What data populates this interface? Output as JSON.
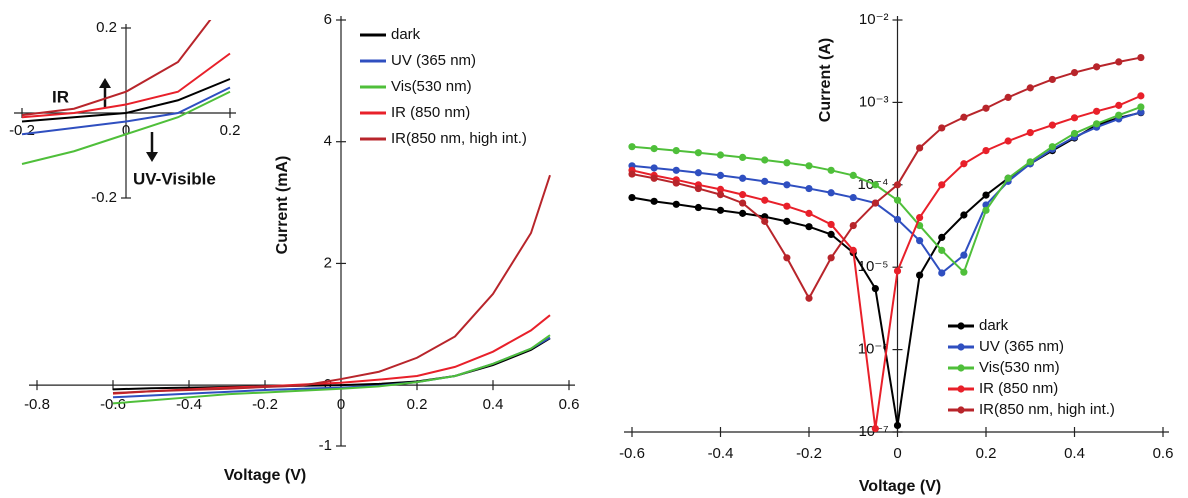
{
  "chart_data": [
    {
      "type": "line",
      "x_label": "Voltage (V)",
      "y_label": "Current (mA)",
      "x": [
        -0.6,
        -0.5,
        -0.4,
        -0.3,
        -0.2,
        -0.1,
        0,
        0.1,
        0.2,
        0.3,
        0.4,
        0.5,
        0.55
      ],
      "xlim": [
        -0.8,
        0.6
      ],
      "xticks": [
        -0.8,
        -0.6,
        -0.4,
        -0.2,
        0,
        0.2,
        0.4,
        0.6
      ],
      "ylim": [
        -1,
        6
      ],
      "yticks": [
        -1,
        0,
        2,
        4,
        6
      ],
      "grid": false,
      "legend": "upper right",
      "series": [
        {
          "name": "dark",
          "color": "#000000",
          "values": [
            -0.07,
            -0.05,
            -0.04,
            -0.03,
            -0.02,
            -0.01,
            0,
            0.02,
            0.06,
            0.15,
            0.33,
            0.58,
            0.77
          ]
        },
        {
          "name": "UV (365 nm)",
          "color": "#2f4fc0",
          "values": [
            -0.2,
            -0.17,
            -0.14,
            -0.11,
            -0.08,
            -0.06,
            -0.04,
            -0.01,
            0.05,
            0.15,
            0.35,
            0.6,
            0.78
          ]
        },
        {
          "name": "Vis(530 nm)",
          "color": "#4fbf3a",
          "values": [
            -0.3,
            -0.25,
            -0.2,
            -0.15,
            -0.12,
            -0.09,
            -0.06,
            -0.02,
            0.05,
            0.15,
            0.35,
            0.6,
            0.82
          ]
        },
        {
          "name": "IR (850 nm)",
          "color": "#e8202a",
          "values": [
            -0.14,
            -0.1,
            -0.07,
            -0.04,
            -0.02,
            0.01,
            0.04,
            0.09,
            0.15,
            0.3,
            0.55,
            0.9,
            1.15
          ]
        },
        {
          "name": "IR(850 nm, high int.)",
          "color": "#b8252b",
          "values": [
            -0.13,
            -0.1,
            -0.08,
            -0.06,
            -0.03,
            -0.005,
            0.1,
            0.22,
            0.45,
            0.8,
            1.5,
            2.5,
            3.45
          ]
        }
      ]
    },
    {
      "type": "line",
      "x": [
        -0.2,
        -0.1,
        0,
        0.1,
        0.2
      ],
      "xlim": [
        -0.2,
        0.2
      ],
      "xticks": [
        -0.2,
        0,
        0.2
      ],
      "ylim": [
        -0.2,
        0.2
      ],
      "yticks": [
        -0.2,
        0.2
      ],
      "grid": false,
      "annotations": [
        "IR",
        "UV-Visible"
      ],
      "series": [
        {
          "color": "#000000",
          "values": [
            -0.02,
            -0.01,
            0,
            0.03,
            0.08
          ]
        },
        {
          "color": "#2f4fc0",
          "values": [
            -0.05,
            -0.035,
            -0.02,
            0,
            0.06
          ]
        },
        {
          "color": "#4fbf3a",
          "values": [
            -0.12,
            -0.09,
            -0.05,
            -0.01,
            0.05
          ]
        },
        {
          "color": "#e8202a",
          "values": [
            -0.01,
            0,
            0.02,
            0.05,
            0.14
          ]
        },
        {
          "color": "#b8252b",
          "values": [
            -0.005,
            0.01,
            0.05,
            0.12,
            0.28
          ]
        }
      ]
    },
    {
      "type": "line",
      "x_label": "Voltage (V)",
      "y_label": "Current (A)",
      "yscale": "log",
      "markers": true,
      "x": [
        -0.6,
        -0.55,
        -0.5,
        -0.45,
        -0.4,
        -0.35,
        -0.3,
        -0.25,
        -0.2,
        -0.15,
        -0.1,
        -0.05,
        0,
        0.05,
        0.1,
        0.15,
        0.2,
        0.25,
        0.3,
        0.35,
        0.4,
        0.45,
        0.5,
        0.55
      ],
      "xlim": [
        -0.6,
        0.6
      ],
      "xticks": [
        -0.6,
        -0.4,
        -0.2,
        0,
        0.2,
        0.4,
        0.6
      ],
      "ylim": [
        1e-07,
        0.01
      ],
      "yticks": [
        {
          "value": 1e-07,
          "label": "10⁻⁷"
        },
        {
          "value": 1e-06,
          "label": "10⁻⁶"
        },
        {
          "value": 1e-05,
          "label": "10⁻⁵"
        },
        {
          "value": 0.0001,
          "label": "10⁻⁴"
        },
        {
          "value": 0.001,
          "label": "10⁻³"
        },
        {
          "value": 0.01,
          "label": "10⁻²"
        }
      ],
      "grid": false,
      "legend": "lower right",
      "series": [
        {
          "name": "dark",
          "color": "#000000",
          "values": [
            7e-05,
            6.3e-05,
            5.8e-05,
            5.3e-05,
            4.9e-05,
            4.5e-05,
            4.1e-05,
            3.6e-05,
            3.1e-05,
            2.5e-05,
            1.5e-05,
            5.5e-06,
            1.2e-07,
            8e-06,
            2.3e-05,
            4.3e-05,
            7.5e-05,
            0.00012,
            0.00018,
            0.00026,
            0.00037,
            0.00053,
            0.00065,
            0.00075
          ]
        },
        {
          "name": "UV (365 nm)",
          "color": "#2f4fc0",
          "values": [
            0.00017,
            0.00016,
            0.00015,
            0.00014,
            0.00013,
            0.00012,
            0.00011,
            0.0001,
            9e-05,
            8e-05,
            7e-05,
            6e-05,
            3.8e-05,
            2.1e-05,
            8.5e-06,
            1.4e-05,
            5.7e-05,
            0.00011,
            0.00018,
            0.00027,
            0.00038,
            0.0005,
            0.00063,
            0.00076
          ]
        },
        {
          "name": "Vis(530 nm)",
          "color": "#4fbf3a",
          "values": [
            0.00029,
            0.000275,
            0.00026,
            0.000245,
            0.00023,
            0.000215,
            0.0002,
            0.000185,
            0.00017,
            0.00015,
            0.00013,
            0.0001,
            6.5e-05,
            3.2e-05,
            1.6e-05,
            8.7e-06,
            4.9e-05,
            0.00012,
            0.00019,
            0.00029,
            0.00042,
            0.00055,
            0.0007,
            0.00088
          ]
        },
        {
          "name": "IR (850 nm)",
          "color": "#e8202a",
          "values": [
            0.00015,
            0.00013,
            0.000115,
            0.0001,
            8.8e-05,
            7.6e-05,
            6.5e-05,
            5.5e-05,
            4.5e-05,
            3.3e-05,
            1.6e-05,
            1.1e-07,
            9e-06,
            4e-05,
            0.0001,
            0.00018,
            0.00026,
            0.00034,
            0.00043,
            0.00053,
            0.00065,
            0.00078,
            0.00092,
            0.0012
          ]
        },
        {
          "name": "IR(850 nm, high int.)",
          "color": "#b8252b",
          "values": [
            0.000135,
            0.00012,
            0.000105,
            9e-05,
            7.6e-05,
            6e-05,
            3.6e-05,
            1.3e-05,
            4.2e-06,
            1.3e-05,
            3.2e-05,
            6e-05,
            0.0001,
            0.00028,
            0.00049,
            0.00066,
            0.00085,
            0.00115,
            0.0015,
            0.0019,
            0.0023,
            0.0027,
            0.0031,
            0.0035
          ]
        }
      ]
    }
  ]
}
